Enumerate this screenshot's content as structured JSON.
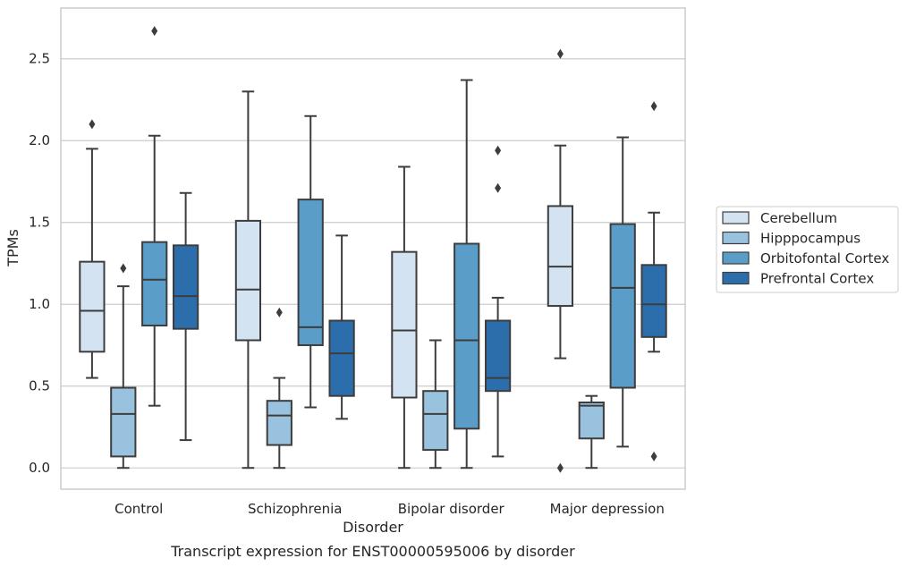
{
  "caption": "Transcript expression for ENST00000595006 by disorder",
  "chart_data": {
    "type": "box",
    "title": "",
    "xlabel": "Disorder",
    "ylabel": "TPMs",
    "ylim": [
      -0.13,
      2.81
    ],
    "yticks": [
      "0.0",
      "0.5",
      "1.0",
      "1.5",
      "2.0",
      "2.5"
    ],
    "grid": true,
    "legend_position": "right",
    "categories": [
      "Control",
      "Schizophrenia",
      "Bipolar disorder",
      "Major depression"
    ],
    "series": [
      {
        "name": "Cerebellum",
        "color": "#d4e3f2",
        "boxes": [
          {
            "q1": 0.71,
            "median": 0.96,
            "q3": 1.26,
            "whisker_low": 0.55,
            "whisker_high": 1.95,
            "outliers": [
              2.1
            ]
          },
          {
            "q1": 0.78,
            "median": 1.09,
            "q3": 1.51,
            "whisker_low": 0.0,
            "whisker_high": 2.3,
            "outliers": []
          },
          {
            "q1": 0.43,
            "median": 0.84,
            "q3": 1.32,
            "whisker_low": 0.0,
            "whisker_high": 1.84,
            "outliers": []
          },
          {
            "q1": 0.99,
            "median": 1.23,
            "q3": 1.6,
            "whisker_low": 0.67,
            "whisker_high": 1.97,
            "outliers": [
              0.0,
              2.53
            ]
          }
        ]
      },
      {
        "name": "Hipppocampus",
        "color": "#98c2dd",
        "boxes": [
          {
            "q1": 0.07,
            "median": 0.33,
            "q3": 0.49,
            "whisker_low": 0.0,
            "whisker_high": 1.11,
            "outliers": [
              1.22
            ]
          },
          {
            "q1": 0.14,
            "median": 0.32,
            "q3": 0.41,
            "whisker_low": 0.0,
            "whisker_high": 0.55,
            "outliers": [
              0.95
            ]
          },
          {
            "q1": 0.11,
            "median": 0.33,
            "q3": 0.47,
            "whisker_low": 0.0,
            "whisker_high": 0.78,
            "outliers": []
          },
          {
            "q1": 0.18,
            "median": 0.38,
            "q3": 0.4,
            "whisker_low": 0.0,
            "whisker_high": 0.44,
            "outliers": []
          }
        ]
      },
      {
        "name": "Orbitofontal Cortex",
        "color": "#5b9dc9",
        "boxes": [
          {
            "q1": 0.87,
            "median": 1.15,
            "q3": 1.38,
            "whisker_low": 0.38,
            "whisker_high": 2.03,
            "outliers": [
              2.67
            ]
          },
          {
            "q1": 0.75,
            "median": 0.86,
            "q3": 1.64,
            "whisker_low": 0.37,
            "whisker_high": 2.15,
            "outliers": []
          },
          {
            "q1": 0.24,
            "median": 0.78,
            "q3": 1.37,
            "whisker_low": 0.0,
            "whisker_high": 2.37,
            "outliers": []
          },
          {
            "q1": 0.49,
            "median": 1.1,
            "q3": 1.49,
            "whisker_low": 0.13,
            "whisker_high": 2.02,
            "outliers": []
          }
        ]
      },
      {
        "name": "Prefrontal Cortex",
        "color": "#2c6eac",
        "boxes": [
          {
            "q1": 0.85,
            "median": 1.05,
            "q3": 1.36,
            "whisker_low": 0.17,
            "whisker_high": 1.68,
            "outliers": []
          },
          {
            "q1": 0.44,
            "median": 0.7,
            "q3": 0.9,
            "whisker_low": 0.3,
            "whisker_high": 1.42,
            "outliers": []
          },
          {
            "q1": 0.47,
            "median": 0.55,
            "q3": 0.9,
            "whisker_low": 0.07,
            "whisker_high": 1.04,
            "outliers": [
              1.71,
              1.94
            ]
          },
          {
            "q1": 0.8,
            "median": 1.0,
            "q3": 1.24,
            "whisker_low": 0.71,
            "whisker_high": 1.56,
            "outliers": [
              0.07,
              2.21
            ]
          }
        ]
      }
    ]
  }
}
